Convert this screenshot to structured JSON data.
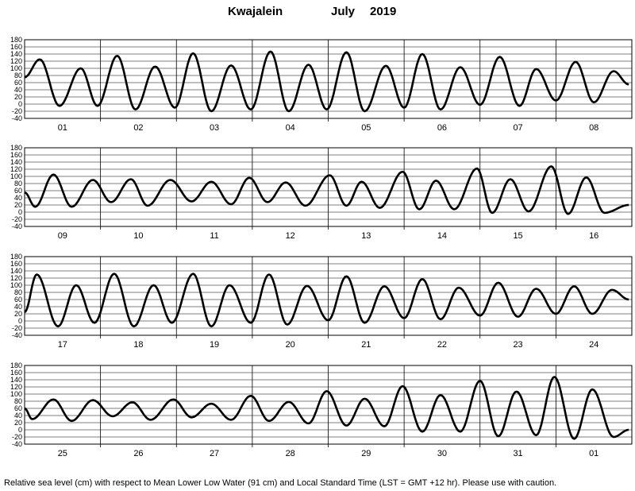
{
  "header": {
    "station": "Kwajalein",
    "month": "July",
    "year": "2019"
  },
  "footer": {
    "note": "Relative sea level (cm) with respect to Mean Lower Low Water (91 cm) and Local Standard Time (LST = GMT +12 hr). Please use with caution."
  },
  "style": {
    "curve_color": "#000000",
    "grid_color": "#000000",
    "background": "#ffffff"
  },
  "chart_data": [
    {
      "type": "line",
      "panel": 1,
      "ylim": [
        -40,
        180
      ],
      "yticks": [
        -40,
        -20,
        0,
        20,
        40,
        60,
        80,
        100,
        120,
        140,
        160,
        180
      ],
      "day_labels": [
        "01",
        "02",
        "03",
        "04",
        "05",
        "06",
        "07",
        "08"
      ],
      "series": [
        {
          "x": [
            0,
            0.2,
            0.46,
            0.74,
            0.96,
            1.22,
            1.46,
            1.72,
            1.98,
            2.22,
            2.46,
            2.72,
            2.98,
            3.24,
            3.48,
            3.74,
            3.98,
            4.24,
            4.48,
            4.76,
            5.0,
            5.24,
            5.48,
            5.74,
            6.0,
            6.26,
            6.52,
            6.74,
            7.0,
            7.26,
            7.5,
            7.76,
            7.96
          ],
          "y": [
            75,
            125,
            -5,
            100,
            -5,
            135,
            -15,
            105,
            -10,
            142,
            -20,
            108,
            -15,
            147,
            -20,
            110,
            -15,
            145,
            -20,
            107,
            -10,
            140,
            -15,
            103,
            -2,
            132,
            -5,
            98,
            10,
            118,
            5,
            92,
            55
          ]
        }
      ]
    },
    {
      "type": "line",
      "panel": 2,
      "ylim": [
        -40,
        180
      ],
      "yticks": [
        -40,
        -20,
        0,
        20,
        40,
        60,
        80,
        100,
        120,
        140,
        160,
        180
      ],
      "day_labels": [
        "09",
        "10",
        "11",
        "12",
        "13",
        "14",
        "15",
        "16"
      ],
      "series": [
        {
          "x": [
            0,
            0.14,
            0.38,
            0.62,
            0.9,
            1.14,
            1.4,
            1.62,
            1.92,
            2.2,
            2.46,
            2.72,
            2.96,
            3.2,
            3.44,
            3.7,
            4.02,
            4.24,
            4.44,
            4.68,
            4.98,
            5.2,
            5.42,
            5.66,
            5.96,
            6.16,
            6.4,
            6.64,
            6.94,
            7.16,
            7.4,
            7.64,
            7.96
          ],
          "y": [
            55,
            15,
            105,
            15,
            90,
            28,
            92,
            18,
            90,
            30,
            85,
            22,
            96,
            28,
            83,
            18,
            103,
            18,
            85,
            12,
            113,
            8,
            88,
            8,
            122,
            -2,
            92,
            2,
            128,
            -5,
            97,
            -2,
            20
          ]
        }
      ]
    },
    {
      "type": "line",
      "panel": 3,
      "ylim": [
        -40,
        180
      ],
      "yticks": [
        -40,
        -20,
        0,
        20,
        40,
        60,
        80,
        100,
        120,
        140,
        160,
        180
      ],
      "day_labels": [
        "17",
        "18",
        "19",
        "20",
        "21",
        "22",
        "23",
        "24"
      ],
      "series": [
        {
          "x": [
            0,
            0.16,
            0.44,
            0.68,
            0.92,
            1.18,
            1.44,
            1.7,
            1.94,
            2.22,
            2.46,
            2.7,
            2.98,
            3.22,
            3.46,
            3.72,
            4.0,
            4.24,
            4.48,
            4.74,
            5.0,
            5.24,
            5.48,
            5.72,
            6.0,
            6.24,
            6.5,
            6.74,
            7.0,
            7.24,
            7.48,
            7.74,
            7.96
          ],
          "y": [
            25,
            130,
            -15,
            100,
            -5,
            132,
            -15,
            100,
            -5,
            132,
            -15,
            100,
            -5,
            130,
            -10,
            98,
            2,
            125,
            -5,
            97,
            8,
            117,
            5,
            93,
            15,
            107,
            12,
            90,
            20,
            97,
            20,
            87,
            60
          ]
        }
      ]
    },
    {
      "type": "line",
      "panel": 4,
      "ylim": [
        -40,
        180
      ],
      "yticks": [
        -40,
        -20,
        0,
        20,
        40,
        60,
        80,
        100,
        120,
        140,
        160,
        180
      ],
      "day_labels": [
        "25",
        "26",
        "27",
        "28",
        "29",
        "30",
        "31",
        "01"
      ],
      "series": [
        {
          "x": [
            0,
            0.1,
            0.38,
            0.62,
            0.9,
            1.16,
            1.42,
            1.66,
            1.96,
            2.2,
            2.46,
            2.72,
            2.98,
            3.22,
            3.48,
            3.74,
            3.98,
            4.24,
            4.48,
            4.74,
            4.98,
            5.24,
            5.48,
            5.74,
            6.0,
            6.24,
            6.48,
            6.74,
            6.98,
            7.24,
            7.48,
            7.76,
            7.96
          ],
          "y": [
            60,
            30,
            85,
            25,
            83,
            38,
            77,
            28,
            85,
            35,
            73,
            28,
            95,
            25,
            78,
            18,
            108,
            12,
            87,
            10,
            122,
            -5,
            97,
            -5,
            137,
            -18,
            107,
            -15,
            148,
            -25,
            113,
            -20,
            0
          ]
        }
      ]
    }
  ]
}
